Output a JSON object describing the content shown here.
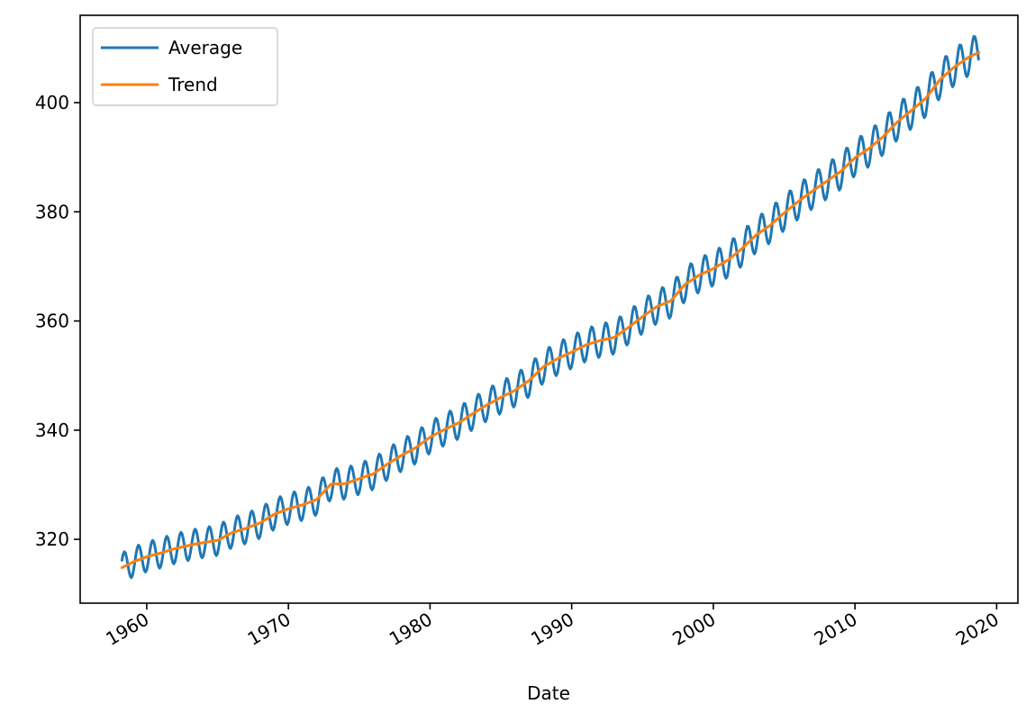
{
  "chart_data": {
    "type": "line",
    "title": "",
    "xlabel": "Date",
    "ylabel": "",
    "xlim": [
      1955.3,
      2021.5
    ],
    "ylim": [
      308.3,
      416.0
    ],
    "grid": false,
    "legend_position": "upper-left",
    "x_ticks": [
      1960,
      1970,
      1980,
      1990,
      2000,
      2010,
      2020
    ],
    "x_tick_labels": [
      "1960",
      "1970",
      "1980",
      "1990",
      "2000",
      "2010",
      "2020"
    ],
    "y_ticks": [
      320,
      340,
      360,
      380,
      400
    ],
    "y_tick_labels": [
      "320",
      "340",
      "360",
      "380",
      "400"
    ],
    "series": [
      {
        "name": "Average",
        "color": "#1f77b4",
        "style": "seasonal",
        "x_start": 1958.25,
        "x_end": 2018.75,
        "step": 0.0833,
        "amplitude_points": [
          [
            1958,
            2.7
          ],
          [
            1990,
            3.0
          ],
          [
            2018,
            3.4
          ]
        ],
        "phase_peak_month": 5
      },
      {
        "name": "Trend",
        "color": "#ff7f0e",
        "x": [
          1958.25,
          1959,
          1960,
          1961,
          1962,
          1963,
          1964,
          1965,
          1966,
          1967,
          1968,
          1969,
          1970,
          1971,
          1972,
          1973,
          1974,
          1975,
          1976,
          1977,
          1978,
          1979,
          1980,
          1981,
          1982,
          1983,
          1984,
          1985,
          1986,
          1987,
          1988,
          1989,
          1990,
          1991,
          1992,
          1993,
          1994,
          1995,
          1996,
          1997,
          1998,
          1999,
          2000,
          2001,
          2002,
          2003,
          2004,
          2005,
          2006,
          2007,
          2008,
          2009,
          2010,
          2011,
          2012,
          2013,
          2014,
          2015,
          2016,
          2017,
          2018,
          2018.75
        ],
        "values": [
          314.8,
          315.8,
          316.8,
          317.5,
          318.3,
          318.9,
          319.4,
          319.8,
          321.2,
          322.0,
          323.0,
          324.6,
          325.6,
          326.3,
          327.3,
          330.1,
          330.2,
          331.1,
          332.0,
          333.8,
          335.4,
          336.8,
          338.7,
          340.1,
          341.3,
          343.0,
          344.6,
          346.0,
          347.3,
          349.1,
          351.6,
          353.1,
          354.3,
          355.6,
          356.4,
          357.0,
          358.8,
          360.8,
          362.6,
          363.7,
          366.7,
          368.4,
          369.6,
          371.1,
          373.2,
          375.7,
          377.5,
          379.8,
          381.9,
          383.8,
          385.6,
          387.4,
          389.9,
          391.6,
          393.8,
          396.5,
          398.6,
          400.8,
          404.2,
          406.5,
          408.3,
          409.2
        ]
      }
    ]
  }
}
